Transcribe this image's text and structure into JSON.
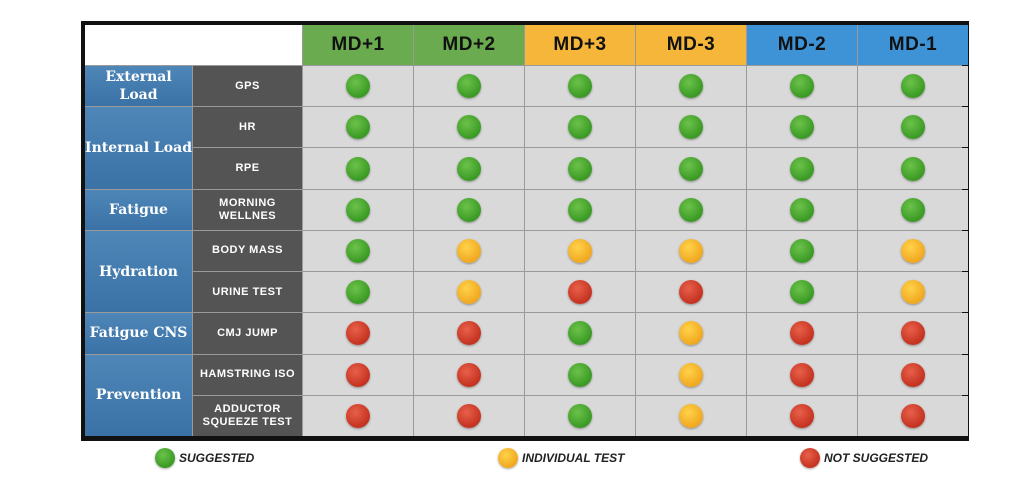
{
  "columns": [
    {
      "label": "MD+1",
      "color": "#6aab4f"
    },
    {
      "label": "MD+2",
      "color": "#6aab4f"
    },
    {
      "label": "MD+3",
      "color": "#f5b63a"
    },
    {
      "label": "MD-3",
      "color": "#f5b63a"
    },
    {
      "label": "MD-2",
      "color": "#3d93d6"
    },
    {
      "label": "MD-1",
      "color": "#3d93d6"
    }
  ],
  "categories": [
    {
      "label": "External Load",
      "rows": 1
    },
    {
      "label": "Internal Load",
      "rows": 2
    },
    {
      "label": "Fatigue",
      "rows": 1
    },
    {
      "label": "Hydration",
      "rows": 2
    },
    {
      "label": "Fatigue CNS",
      "rows": 1
    },
    {
      "label": "Prevention",
      "rows": 2
    }
  ],
  "rows": [
    {
      "metric": "GPS",
      "values": [
        "suggested",
        "suggested",
        "suggested",
        "suggested",
        "suggested",
        "suggested"
      ]
    },
    {
      "metric": "HR",
      "values": [
        "suggested",
        "suggested",
        "suggested",
        "suggested",
        "suggested",
        "suggested"
      ]
    },
    {
      "metric": "RPE",
      "values": [
        "suggested",
        "suggested",
        "suggested",
        "suggested",
        "suggested",
        "suggested"
      ]
    },
    {
      "metric": "MORNING WELLNES",
      "values": [
        "suggested",
        "suggested",
        "suggested",
        "suggested",
        "suggested",
        "suggested"
      ]
    },
    {
      "metric": "BODY MASS",
      "values": [
        "suggested",
        "individual",
        "individual",
        "individual",
        "suggested",
        "individual"
      ]
    },
    {
      "metric": "URINE TEST",
      "values": [
        "suggested",
        "individual",
        "not",
        "not",
        "suggested",
        "individual"
      ]
    },
    {
      "metric": "CMJ JUMP",
      "values": [
        "not",
        "not",
        "suggested",
        "individual",
        "not",
        "not"
      ]
    },
    {
      "metric": "HAMSTRING ISO",
      "values": [
        "not",
        "not",
        "suggested",
        "individual",
        "not",
        "not"
      ]
    },
    {
      "metric": "ADDUCTOR SQUEEZE TEST",
      "values": [
        "not",
        "not",
        "suggested",
        "individual",
        "not",
        "not"
      ]
    }
  ],
  "legend": [
    {
      "key": "suggested",
      "label": "SUGGESTED"
    },
    {
      "key": "individual",
      "label": "INDIVIDUAL TEST"
    },
    {
      "key": "not",
      "label": "NOT SUGGESTED"
    }
  ]
}
